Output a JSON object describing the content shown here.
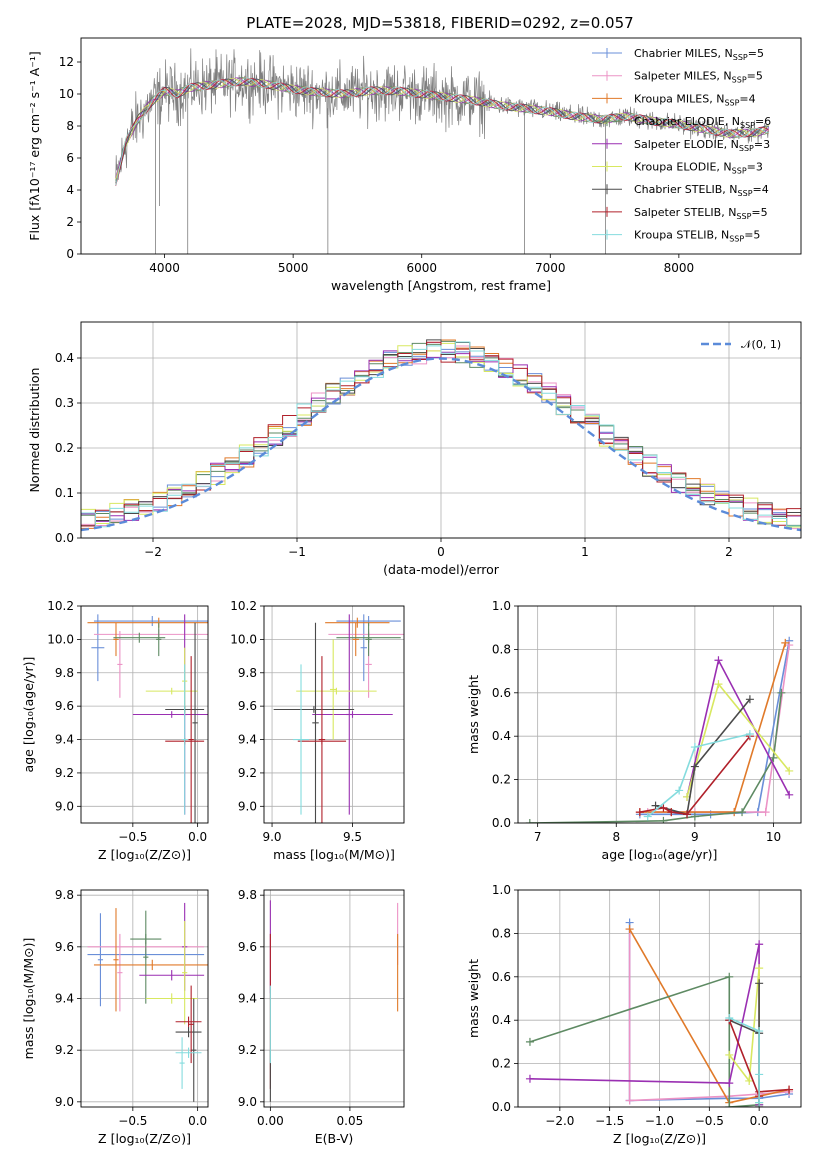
{
  "figure": {
    "title": "PLATE=2028, MJD=53818, FIBERID=0292, z=0.057",
    "series_colors": [
      "#6a8fd8",
      "#ec93c6",
      "#e07a2a",
      "#5e8a63",
      "#9a2fb2",
      "#d8e860",
      "#4a4a4a",
      "#b0202a",
      "#84dcde"
    ]
  },
  "chart_data": [
    {
      "id": "spectrum",
      "type": "line",
      "title": "PLATE=2028, MJD=53818, FIBERID=0292, z=0.057",
      "xlabel": "wavelength [Angstrom, rest frame]",
      "ylabel": "Flux [fλ10⁻¹⁷ erg cm⁻² s⁻¹ A⁻¹]",
      "xlim": [
        3350,
        8950
      ],
      "ylim": [
        0,
        13.5
      ],
      "x_ticks": [
        4000,
        5000,
        6000,
        7000,
        8000
      ],
      "y_ticks": [
        0,
        2,
        4,
        6,
        8,
        10,
        12
      ],
      "grid": false,
      "legend_position": "top-right",
      "data_color": "#7f7f7f",
      "data_spectrum": {
        "x": [
          3620,
          3700,
          3800,
          3900,
          4000,
          4100,
          4200,
          4400,
          4600,
          4800,
          5000,
          5200,
          5400,
          5600,
          5800,
          6000,
          6200,
          6400,
          6600,
          6800,
          7000,
          7200,
          7400,
          7600,
          7800,
          8000,
          8200,
          8400,
          8600,
          8700
        ],
        "y": [
          4.5,
          7.0,
          8.5,
          9.5,
          10.2,
          10.0,
          10.4,
          10.6,
          10.8,
          10.6,
          10.3,
          10.1,
          10.0,
          10.2,
          10.2,
          10.0,
          9.8,
          9.6,
          9.3,
          9.1,
          8.9,
          8.6,
          8.4,
          8.6,
          8.3,
          8.1,
          7.8,
          7.5,
          7.6,
          7.8
        ]
      },
      "series": [
        {
          "name": "Chabrier MILES, N$_{SSP}$=5",
          "label": "Chabrier MILES, N",
          "sub": "SSP",
          "suffix": "=5"
        },
        {
          "name": "Salpeter MILES, N$_{SSP}$=5",
          "label": "Salpeter MILES, N",
          "sub": "SSP",
          "suffix": "=5"
        },
        {
          "name": "Kroupa MILES, N$_{SSP}$=4",
          "label": "Kroupa MILES, N",
          "sub": "SSP",
          "suffix": "=4"
        },
        {
          "name": "Chabrier ELODIE, N$_{SSP}$=6",
          "label": "Chabrier ELODIE, N",
          "sub": "SSP",
          "suffix": "=6"
        },
        {
          "name": "Salpeter ELODIE, N$_{SSP}$=3",
          "label": "Salpeter ELODIE, N",
          "sub": "SSP",
          "suffix": "=3"
        },
        {
          "name": "Kroupa ELODIE, N$_{SSP}$=3",
          "label": "Kroupa ELODIE, N",
          "sub": "SSP",
          "suffix": "=3"
        },
        {
          "name": "Chabrier STELIB, N$_{SSP}$=4",
          "label": "Chabrier STELIB, N",
          "sub": "SSP",
          "suffix": "=4"
        },
        {
          "name": "Salpeter STELIB, N$_{SSP}$=5",
          "label": "Salpeter STELIB, N",
          "sub": "SSP",
          "suffix": "=5"
        },
        {
          "name": "Kroupa STELIB, N$_{SSP}$=5",
          "label": "Kroupa STELIB, N",
          "sub": "SSP",
          "suffix": "=5"
        }
      ]
    },
    {
      "id": "residuals",
      "type": "histogram",
      "xlabel": "(data-model)/error",
      "ylabel": "Normed distribution",
      "xlim": [
        -2.5,
        2.5
      ],
      "ylim": [
        0,
        0.48
      ],
      "x_ticks": [
        -2,
        -1,
        0,
        1,
        2
      ],
      "y_ticks": [
        0.0,
        0.1,
        0.2,
        0.3,
        0.4
      ],
      "grid": true,
      "bin_width": 0.1,
      "reference_curve": {
        "name": "𝒩(0, 1)",
        "mean": 0,
        "sigma": 1,
        "style": "dashed",
        "color": "#5b8bd9"
      },
      "legend_position": "top-right"
    },
    {
      "id": "age_vs_Z",
      "type": "scatter",
      "xlabel": "Z [log₁₀(Z/Z⊙)]",
      "ylabel": "age  [log₁₀(age/yr)]",
      "xlim": [
        -0.9,
        0.08
      ],
      "ylim": [
        8.9,
        10.2
      ],
      "x_ticks": [
        -0.5,
        0.0
      ],
      "y_ticks": [
        9.0,
        9.2,
        9.4,
        9.6,
        9.8,
        10.0,
        10.2
      ],
      "grid": true,
      "points": [
        {
          "series": 0,
          "x": -0.35,
          "xerr": 0.45,
          "y": 10.11,
          "yerr": 0.03
        },
        {
          "series": 0,
          "x": -0.77,
          "xerr": 0.05,
          "y": 9.95,
          "yerr": 0.2
        },
        {
          "series": 1,
          "x": -0.3,
          "xerr": 0.5,
          "y": 10.03,
          "yerr": 0.03
        },
        {
          "series": 1,
          "x": -0.6,
          "xerr": 0.02,
          "y": 9.85,
          "yerr": 0.2
        },
        {
          "series": 2,
          "x": -0.3,
          "xerr": 0.55,
          "y": 10.1,
          "yerr": 0.03
        },
        {
          "series": 2,
          "x": -0.63,
          "xerr": 0.02,
          "y": 10.0,
          "yerr": 0.1
        },
        {
          "series": 3,
          "x": -0.45,
          "xerr": 0.2,
          "y": 10.01,
          "yerr": 0.03
        },
        {
          "series": 3,
          "x": -0.3,
          "xerr": 0.02,
          "y": 10.0,
          "yerr": 0.1
        },
        {
          "series": 4,
          "x": -0.2,
          "xerr": 0.3,
          "y": 9.55,
          "yerr": 0.02
        },
        {
          "series": 4,
          "x": -0.1,
          "xerr": 0.02,
          "y": 9.55,
          "yerr": 0.6
        },
        {
          "series": 5,
          "x": -0.2,
          "xerr": 0.2,
          "y": 9.69,
          "yerr": 0.02
        },
        {
          "series": 5,
          "x": -0.1,
          "xerr": 0.02,
          "y": 9.75,
          "yerr": 0.2
        },
        {
          "series": 6,
          "x": -0.1,
          "xerr": 0.15,
          "y": 9.58,
          "yerr": 0.02
        },
        {
          "series": 6,
          "x": -0.02,
          "xerr": 0.02,
          "y": 9.5,
          "yerr": 0.6
        },
        {
          "series": 7,
          "x": -0.1,
          "xerr": 0.15,
          "y": 9.39,
          "yerr": 0.02
        },
        {
          "series": 7,
          "x": -0.05,
          "xerr": 0.02,
          "y": 9.4,
          "yerr": 0.5
        },
        {
          "series": 8,
          "x": -0.1,
          "xerr": 0.02,
          "y": 9.4,
          "yerr": 0.45
        }
      ]
    },
    {
      "id": "age_vs_mass",
      "type": "scatter",
      "xlabel": "mass [log₁₀(M/M⊙)]",
      "ylabel": "",
      "xlim": [
        8.95,
        9.82
      ],
      "ylim": [
        8.9,
        10.2
      ],
      "x_ticks": [
        9.0,
        9.5
      ],
      "y_ticks": [
        9.0,
        9.2,
        9.4,
        9.6,
        9.8,
        10.0,
        10.2
      ],
      "grid": true,
      "points": [
        {
          "series": 0,
          "x": 9.6,
          "xerr": 0.2,
          "y": 10.11,
          "yerr": 0.03
        },
        {
          "series": 0,
          "x": 9.57,
          "xerr": 0.02,
          "y": 9.95,
          "yerr": 0.2
        },
        {
          "series": 1,
          "x": 9.6,
          "xerr": 0.25,
          "y": 10.03,
          "yerr": 0.03
        },
        {
          "series": 1,
          "x": 9.6,
          "xerr": 0.02,
          "y": 9.85,
          "yerr": 0.2
        },
        {
          "series": 2,
          "x": 9.53,
          "xerr": 0.2,
          "y": 10.1,
          "yerr": 0.03
        },
        {
          "series": 2,
          "x": 9.52,
          "xerr": 0.02,
          "y": 10.0,
          "yerr": 0.1
        },
        {
          "series": 3,
          "x": 9.6,
          "xerr": 0.2,
          "y": 10.01,
          "yerr": 0.03
        },
        {
          "series": 3,
          "x": 9.6,
          "xerr": 0.02,
          "y": 10.0,
          "yerr": 0.1
        },
        {
          "series": 4,
          "x": 9.5,
          "xerr": 0.25,
          "y": 9.55,
          "yerr": 0.02
        },
        {
          "series": 4,
          "x": 9.48,
          "xerr": 0.02,
          "y": 9.55,
          "yerr": 0.6
        },
        {
          "series": 5,
          "x": 9.4,
          "xerr": 0.25,
          "y": 9.69,
          "yerr": 0.02
        },
        {
          "series": 5,
          "x": 9.38,
          "xerr": 0.02,
          "y": 9.7,
          "yerr": 0.3
        },
        {
          "series": 6,
          "x": 9.26,
          "xerr": 0.25,
          "y": 9.58,
          "yerr": 0.02
        },
        {
          "series": 6,
          "x": 9.27,
          "xerr": 0.02,
          "y": 9.5,
          "yerr": 0.6
        },
        {
          "series": 7,
          "x": 9.31,
          "xerr": 0.15,
          "y": 9.39,
          "yerr": 0.02
        },
        {
          "series": 7,
          "x": 9.31,
          "xerr": 0.02,
          "y": 9.4,
          "yerr": 0.5
        },
        {
          "series": 8,
          "x": 9.18,
          "xerr": 0.05,
          "y": 9.4,
          "yerr": 0.02
        },
        {
          "series": 8,
          "x": 9.18,
          "xerr": 0.02,
          "y": 9.4,
          "yerr": 0.45
        }
      ]
    },
    {
      "id": "weight_vs_age",
      "type": "line",
      "xlabel": "age  [log₁₀(age/yr)]",
      "ylabel": "mass weight",
      "xlim": [
        6.75,
        10.35
      ],
      "ylim": [
        0,
        1
      ],
      "x_ticks": [
        7,
        8,
        9,
        10
      ],
      "y_ticks": [
        0.0,
        0.2,
        0.4,
        0.6,
        0.8,
        1.0
      ],
      "grid": true,
      "series": [
        {
          "series": 0,
          "x": [
            8.3,
            8.9,
            9.2,
            9.8,
            10.2
          ],
          "y": [
            0.04,
            0.04,
            0.04,
            0.05,
            0.84
          ]
        },
        {
          "series": 1,
          "x": [
            8.4,
            9.0,
            9.5,
            9.9,
            10.2
          ],
          "y": [
            0.05,
            0.05,
            0.05,
            0.05,
            0.82
          ]
        },
        {
          "series": 2,
          "x": [
            8.3,
            8.7,
            9.5,
            10.15
          ],
          "y": [
            0.05,
            0.05,
            0.05,
            0.83
          ]
        },
        {
          "series": 3,
          "x": [
            6.9,
            8.6,
            9.0,
            9.6,
            10.0,
            10.1
          ],
          "y": [
            0.0,
            0.01,
            0.03,
            0.05,
            0.3,
            0.6
          ]
        },
        {
          "series": 4,
          "x": [
            8.9,
            9.3,
            10.2
          ],
          "y": [
            0.12,
            0.75,
            0.13
          ]
        },
        {
          "series": 5,
          "x": [
            8.9,
            9.3,
            10.2
          ],
          "y": [
            0.12,
            0.64,
            0.24
          ]
        },
        {
          "series": 6,
          "x": [
            8.5,
            8.9,
            9.0,
            9.7
          ],
          "y": [
            0.08,
            0.04,
            0.26,
            0.57
          ]
        },
        {
          "series": 7,
          "x": [
            8.3,
            8.6,
            8.7,
            8.9,
            9.7
          ],
          "y": [
            0.05,
            0.07,
            0.05,
            0.04,
            0.4
          ]
        },
        {
          "series": 8,
          "x": [
            8.4,
            8.8,
            9.0,
            9.7
          ],
          "y": [
            0.03,
            0.15,
            0.35,
            0.41
          ]
        }
      ]
    },
    {
      "id": "mass_vs_Z",
      "type": "scatter",
      "xlabel": "Z [log₁₀(Z/Z⊙)]",
      "ylabel": "mass [log₁₀(M/M⊙)]",
      "xlim": [
        -0.9,
        0.08
      ],
      "ylim": [
        8.98,
        9.82
      ],
      "x_ticks": [
        -0.5,
        0.0
      ],
      "y_ticks": [
        9.0,
        9.2,
        9.4,
        9.6,
        9.8
      ],
      "grid": true,
      "points": [
        {
          "series": 0,
          "x": -0.4,
          "xerr": 0.45,
          "y": 9.57,
          "yerr": 0.02
        },
        {
          "series": 0,
          "x": -0.75,
          "xerr": 0.02,
          "y": 9.55,
          "yerr": 0.18
        },
        {
          "series": 1,
          "x": -0.4,
          "xerr": 0.45,
          "y": 9.6,
          "yerr": 0.02
        },
        {
          "series": 1,
          "x": -0.6,
          "xerr": 0.02,
          "y": 9.5,
          "yerr": 0.15
        },
        {
          "series": 2,
          "x": -0.35,
          "xerr": 0.45,
          "y": 9.53,
          "yerr": 0.02
        },
        {
          "series": 2,
          "x": -0.63,
          "xerr": 0.02,
          "y": 9.55,
          "yerr": 0.2
        },
        {
          "series": 3,
          "x": -0.4,
          "xerr": 0.12,
          "y": 9.63,
          "yerr": 0.02
        },
        {
          "series": 3,
          "x": -0.4,
          "xerr": 0.02,
          "y": 9.56,
          "yerr": 0.18
        },
        {
          "series": 4,
          "x": -0.2,
          "xerr": 0.25,
          "y": 9.49,
          "yerr": 0.02
        },
        {
          "series": 4,
          "x": -0.1,
          "xerr": 0.02,
          "y": 9.6,
          "yerr": 0.17
        },
        {
          "series": 5,
          "x": -0.2,
          "xerr": 0.2,
          "y": 9.4,
          "yerr": 0.02
        },
        {
          "series": 5,
          "x": -0.1,
          "xerr": 0.02,
          "y": 9.5,
          "yerr": 0.2
        },
        {
          "series": 6,
          "x": -0.07,
          "xerr": 0.1,
          "y": 9.27,
          "yerr": 0.02
        },
        {
          "series": 6,
          "x": -0.03,
          "xerr": 0.02,
          "y": 9.2,
          "yerr": 0.2
        },
        {
          "series": 7,
          "x": -0.07,
          "xerr": 0.1,
          "y": 9.31,
          "yerr": 0.02
        },
        {
          "series": 7,
          "x": -0.05,
          "xerr": 0.02,
          "y": 9.3,
          "yerr": 0.15
        },
        {
          "series": 8,
          "x": -0.07,
          "xerr": 0.1,
          "y": 9.19,
          "yerr": 0.02
        },
        {
          "series": 8,
          "x": -0.12,
          "xerr": 0.02,
          "y": 9.15,
          "yerr": 0.1
        }
      ]
    },
    {
      "id": "mass_vs_ebv",
      "type": "scatter",
      "xlabel": "E(B-V)",
      "ylabel": "",
      "xlim": [
        -0.004,
        0.084
      ],
      "ylim": [
        8.98,
        9.82
      ],
      "x_ticks": [
        0.0,
        0.05
      ],
      "y_ticks": [
        9.0,
        9.2,
        9.4,
        9.6,
        9.8
      ],
      "grid": true,
      "points": [
        {
          "series": 4,
          "x": 0.0,
          "xerr": 0.0,
          "y": 9.6,
          "yerr": 0.18
        },
        {
          "series": 7,
          "x": 0.0,
          "xerr": 0.0,
          "y": 9.35,
          "yerr": 0.3
        },
        {
          "series": 6,
          "x": 0.0,
          "xerr": 0.0,
          "y": 9.1,
          "yerr": 0.1
        },
        {
          "series": 8,
          "x": 0.0,
          "xerr": 0.0,
          "y": 9.3,
          "yerr": 0.15
        },
        {
          "series": 1,
          "x": 0.08,
          "xerr": 0.0,
          "y": 9.65,
          "yerr": 0.12
        },
        {
          "series": 2,
          "x": 0.08,
          "xerr": 0.0,
          "y": 9.5,
          "yerr": 0.15
        }
      ]
    },
    {
      "id": "weight_vs_Z",
      "type": "line",
      "xlabel": "Z [log₁₀(Z/Z⊙)]",
      "ylabel": "mass weight",
      "xlim": [
        -2.42,
        0.42
      ],
      "ylim": [
        0,
        1
      ],
      "x_ticks": [
        -2.0,
        -1.5,
        -1.0,
        -0.5,
        0.0
      ],
      "y_ticks": [
        0.0,
        0.2,
        0.4,
        0.6,
        0.8,
        1.0
      ],
      "grid": true,
      "series": [
        {
          "series": 0,
          "x": [
            -1.3,
            -1.3,
            -0.3,
            0.0,
            0.3
          ],
          "y": [
            0.85,
            0.03,
            0.04,
            0.04,
            0.06
          ]
        },
        {
          "series": 1,
          "x": [
            -1.3,
            -1.3,
            -0.3,
            0.0,
            0.3
          ],
          "y": [
            0.82,
            0.03,
            0.05,
            0.06,
            0.07
          ]
        },
        {
          "series": 2,
          "x": [
            -1.3,
            -0.3,
            0.0,
            0.3
          ],
          "y": [
            0.82,
            0.02,
            0.05,
            0.08
          ]
        },
        {
          "series": 3,
          "x": [
            -2.3,
            -0.3,
            -0.3,
            0.0
          ],
          "y": [
            0.3,
            0.6,
            0.0,
            0.01
          ]
        },
        {
          "series": 4,
          "x": [
            -2.3,
            -0.3,
            0.0,
            0.0
          ],
          "y": [
            0.13,
            0.11,
            0.75,
            0.01
          ]
        },
        {
          "series": 5,
          "x": [
            -0.3,
            -0.1,
            0.0,
            0.0
          ],
          "y": [
            0.24,
            0.12,
            0.64,
            0.02
          ]
        },
        {
          "series": 6,
          "x": [
            -0.3,
            0.0,
            0.0,
            0.0
          ],
          "y": [
            0.4,
            0.34,
            0.57,
            0.0
          ]
        },
        {
          "series": 7,
          "x": [
            -0.3,
            0.0,
            0.0,
            0.3
          ],
          "y": [
            0.4,
            0.05,
            0.07,
            0.08
          ]
        },
        {
          "series": 8,
          "x": [
            -0.3,
            0.0,
            0.0,
            0.0
          ],
          "y": [
            0.41,
            0.35,
            0.02,
            0.15
          ]
        }
      ]
    }
  ]
}
